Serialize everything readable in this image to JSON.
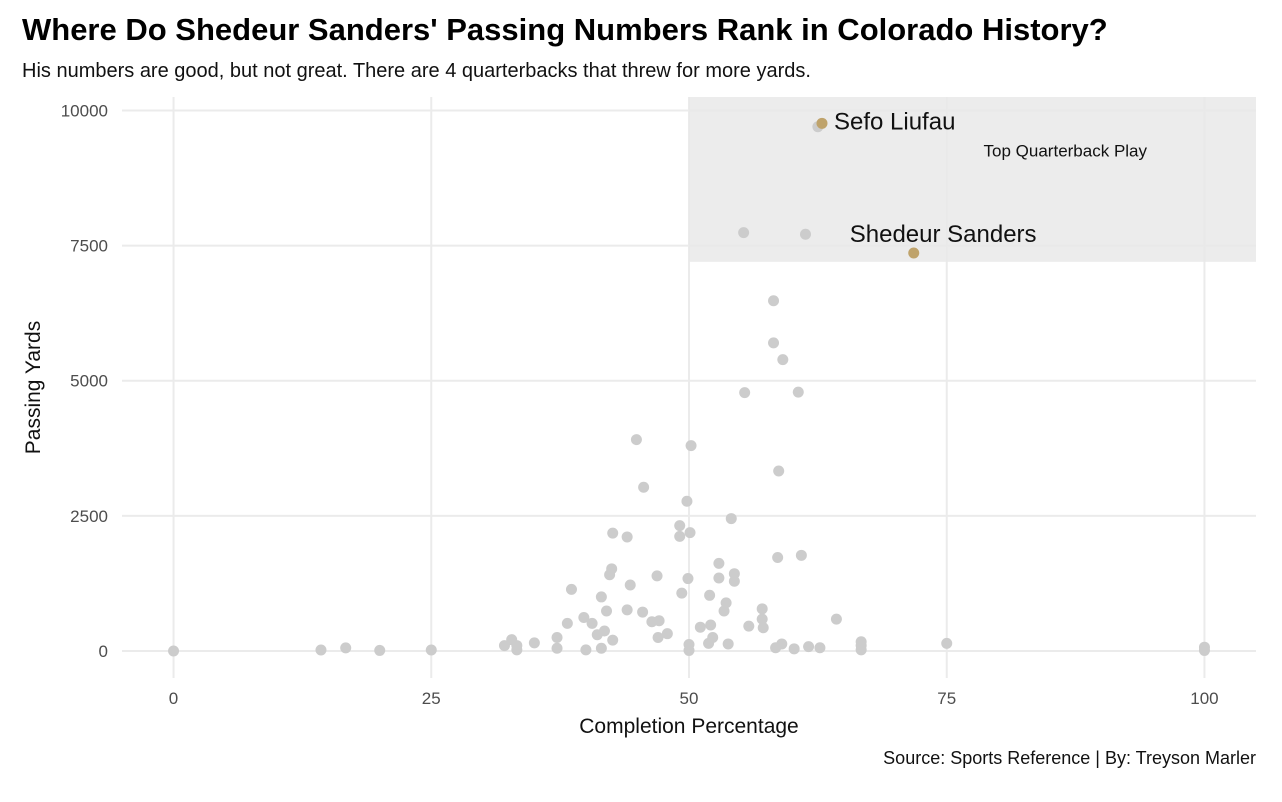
{
  "header": {
    "title": "Where Do Shedeur Sanders' Passing Numbers Rank in Colorado History?",
    "subtitle": "His numbers are good, but not great. There are 4 quarterbacks that threw for more yards."
  },
  "footer": {
    "caption": "Source: Sports Reference | By: Treyson Marler"
  },
  "colors": {
    "point": "#cccccc",
    "highlight": "#bfa36b",
    "region": "#e9e9e9",
    "grid": "#ebebeb"
  },
  "chart_data": {
    "type": "scatter",
    "xlabel": "Completion Percentage",
    "ylabel": "Passing Yards",
    "xlim": [
      -5,
      105
    ],
    "ylim": [
      -500,
      10250
    ],
    "x_ticks": [
      "0",
      "25",
      "50",
      "75",
      "100"
    ],
    "y_ticks": [
      "0",
      "2500",
      "5000",
      "7500",
      "10000"
    ],
    "grid": true,
    "region": {
      "label": "Top Quarterback Play",
      "x_range": [
        50,
        105
      ],
      "y_range": [
        7200,
        10250
      ]
    },
    "highlighted": [
      {
        "label": "Sefo Liufau",
        "x": 62.9,
        "y": 9763
      },
      {
        "label": "Shedeur Sanders",
        "x": 71.8,
        "y": 7364
      }
    ],
    "points": [
      [
        0,
        0
      ],
      [
        14.3,
        18
      ],
      [
        16.7,
        57
      ],
      [
        20,
        10
      ],
      [
        25,
        18
      ],
      [
        32.1,
        100
      ],
      [
        32.8,
        210
      ],
      [
        33.3,
        100
      ],
      [
        33.3,
        20
      ],
      [
        35,
        150
      ],
      [
        37.2,
        250
      ],
      [
        37.2,
        50
      ],
      [
        38.2,
        510
      ],
      [
        38.6,
        1140
      ],
      [
        39.8,
        620
      ],
      [
        40,
        20
      ],
      [
        40.6,
        510
      ],
      [
        41.1,
        300
      ],
      [
        41.5,
        1000
      ],
      [
        41.5,
        50
      ],
      [
        41.8,
        370
      ],
      [
        42,
        740
      ],
      [
        42.3,
        1410
      ],
      [
        42.5,
        1520
      ],
      [
        42.6,
        200
      ],
      [
        42.6,
        2180
      ],
      [
        44,
        2110
      ],
      [
        44,
        760
      ],
      [
        44.3,
        1220
      ],
      [
        44.9,
        3910
      ],
      [
        45.5,
        720
      ],
      [
        45.6,
        3030
      ],
      [
        46.4,
        540
      ],
      [
        46.9,
        1390
      ],
      [
        47,
        250
      ],
      [
        47.1,
        560
      ],
      [
        47.9,
        320
      ],
      [
        49.1,
        2320
      ],
      [
        49.1,
        2120
      ],
      [
        49.3,
        1070
      ],
      [
        49.8,
        2770
      ],
      [
        49.9,
        1340
      ],
      [
        50,
        120
      ],
      [
        50,
        10
      ],
      [
        50.1,
        2190
      ],
      [
        50.2,
        3800
      ],
      [
        51.1,
        440
      ],
      [
        51.9,
        140
      ],
      [
        52,
        1030
      ],
      [
        52.1,
        480
      ],
      [
        52.3,
        250
      ],
      [
        52.9,
        1620
      ],
      [
        52.9,
        1350
      ],
      [
        53.4,
        740
      ],
      [
        53.6,
        890
      ],
      [
        53.8,
        130
      ],
      [
        54.1,
        2450
      ],
      [
        54.4,
        1290
      ],
      [
        54.4,
        1430
      ],
      [
        55.3,
        7740
      ],
      [
        55.4,
        4780
      ],
      [
        55.8,
        460
      ],
      [
        57.1,
        780
      ],
      [
        57.1,
        590
      ],
      [
        57.2,
        430
      ],
      [
        58.2,
        6480
      ],
      [
        58.2,
        5700
      ],
      [
        58.4,
        60
      ],
      [
        58.6,
        1730
      ],
      [
        58.7,
        3330
      ],
      [
        59,
        130
      ],
      [
        59.1,
        5390
      ],
      [
        60.2,
        40
      ],
      [
        60.6,
        4790
      ],
      [
        60.9,
        1770
      ],
      [
        61.3,
        7710
      ],
      [
        61.6,
        80
      ],
      [
        62.5,
        9700
      ],
      [
        62.7,
        60
      ],
      [
        64.3,
        590
      ],
      [
        66.7,
        170
      ],
      [
        66.7,
        100
      ],
      [
        66.7,
        20
      ],
      [
        75,
        140
      ],
      [
        100,
        70
      ],
      [
        100,
        10
      ]
    ]
  }
}
